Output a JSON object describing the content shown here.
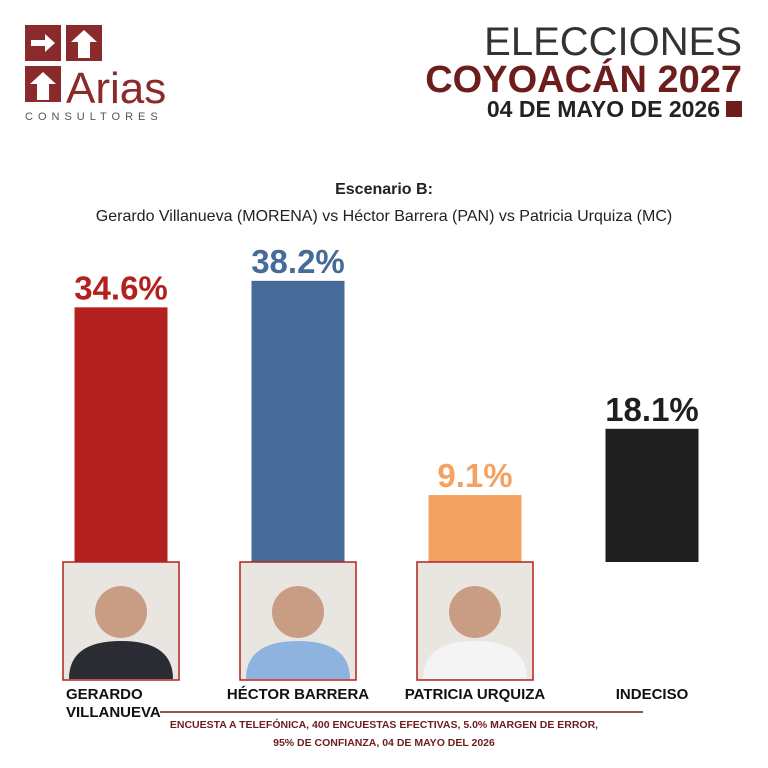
{
  "header": {
    "logo_name": "Arias",
    "logo_sub": "CONSULTORES",
    "line1": "ELECCIONES",
    "line2": "COYOACÁN 2027",
    "line3": "04 DE MAYO DE 2026"
  },
  "chart_data": {
    "type": "bar",
    "title": "Escenario B:",
    "subtitle": "Gerardo Villanueva (MORENA) vs Héctor Barrera (PAN) vs Patricia Urquiza (MC)",
    "categories": [
      "GERARDO VILLANUEVA",
      "HÉCTOR BARRERA",
      "PATRICIA URQUIZA",
      "INDECISO"
    ],
    "values": [
      34.6,
      38.2,
      9.1,
      18.1
    ],
    "value_labels": [
      "34.6%",
      "38.2%",
      "9.1%",
      "18.1%"
    ],
    "colors": [
      "#b3211f",
      "#466b98",
      "#f4a262",
      "#1f1f1f"
    ]
  },
  "footer": [
    "ENCUESTA A TELEFÓNICA, 400 ENCUESTAS EFECTIVAS, 5.0% MARGEN DE ERROR,",
    "95% DE CONFIANZA, 04 DE MAYO DEL 2026"
  ]
}
